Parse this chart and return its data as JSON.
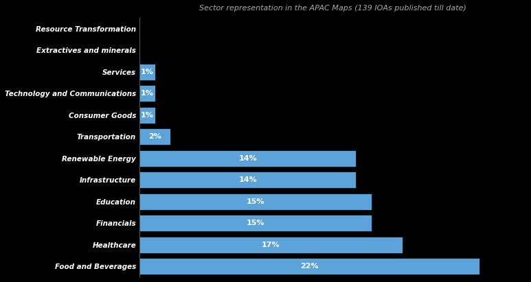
{
  "title": "Sector representation in the APAC Maps (139 IOAs published till date)",
  "categories": [
    "Food and Beverages",
    "Healthcare",
    "Financials",
    "Education",
    "Infrastructure",
    "Renewable Energy",
    "Transportation",
    "Consumer Goods",
    "Technology and Communications",
    "Services",
    "Extractives and minerals",
    "Resource Transformation"
  ],
  "values": [
    22,
    17,
    15,
    15,
    14,
    14,
    2,
    1,
    1,
    1,
    0,
    0
  ],
  "bar_color": "#5BA3D9",
  "label_color": "#FFFFFF",
  "title_color": "#AAAAAA",
  "axis_label_color": "#FFFFFF",
  "background_color": "#000000",
  "bar_edge_color": "#000000",
  "xlim": [
    0,
    25
  ],
  "title_fontsize": 8,
  "label_fontsize": 8,
  "category_fontsize": 7.5,
  "fig_width": 7.73,
  "fig_height": 4.11,
  "fig_dpi": 100
}
